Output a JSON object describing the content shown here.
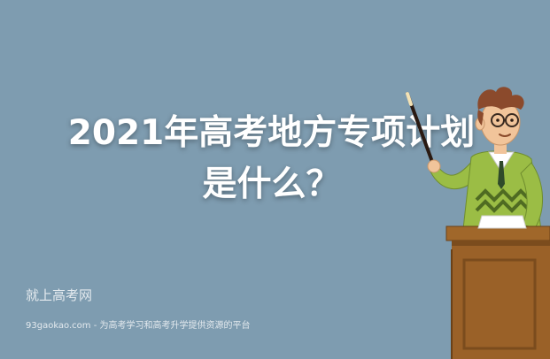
{
  "headline": {
    "line1": "2021年高考地方专项计划",
    "line2": "是什么？"
  },
  "watermark": {
    "brand": "就上高考网",
    "tagline": "93gaokao.com - 为高考学习和高考升学提供资源的平台"
  },
  "colors": {
    "background": "#7e9cb0",
    "podium": "#a0672a",
    "podium_dark": "#7b4c1d",
    "jacket": "#9bbd45",
    "hair": "#8b4a2c",
    "skin": "#f1c49a"
  },
  "illustration": {
    "subject": "teacher-with-pointer-at-podium",
    "icons": [
      "pointer-stick",
      "glasses",
      "paper-sheet"
    ]
  }
}
